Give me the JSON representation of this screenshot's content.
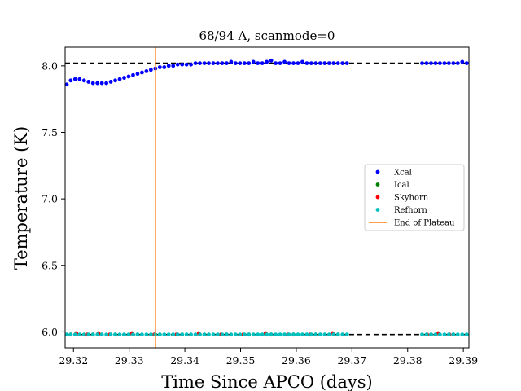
{
  "chart_data": {
    "type": "scatter",
    "title": "68/94 A, scanmode=0",
    "xlabel": "Time Since APCO (days)",
    "ylabel": "Temperature (K)",
    "xlim": [
      29.3185,
      29.391
    ],
    "ylim": [
      5.88,
      8.14
    ],
    "x_ticks": [
      29.32,
      29.33,
      29.34,
      29.35,
      29.36,
      29.37,
      29.38,
      29.39
    ],
    "x_tick_labels": [
      "29.32",
      "29.33",
      "29.34",
      "29.35",
      "29.36",
      "29.37",
      "29.38",
      "29.39"
    ],
    "y_ticks": [
      6.0,
      6.5,
      7.0,
      7.5,
      8.0
    ],
    "y_tick_labels": [
      "6.0",
      "6.5",
      "7.0",
      "7.5",
      "8.0"
    ],
    "grid": false,
    "legend_position": "center-right",
    "plateau_lines": [
      {
        "y": 8.02,
        "style": "dashed",
        "color": "#000000"
      },
      {
        "y": 5.98,
        "style": "dashed",
        "color": "#000000"
      }
    ],
    "end_of_plateau_x": 29.3347,
    "data_gap": [
      29.3695,
      29.3823
    ],
    "series": [
      {
        "name": "Xcal",
        "color": "#0000ff",
        "x": [
          29.3187,
          29.3195,
          29.3203,
          29.3211,
          29.3219,
          29.3227,
          29.3235,
          29.3243,
          29.3251,
          29.3259,
          29.3267,
          29.3275,
          29.3283,
          29.3291,
          29.3299,
          29.3307,
          29.3315,
          29.3323,
          29.3331,
          29.3339,
          29.3347,
          29.3355,
          29.3363,
          29.3371,
          29.3379,
          29.3387,
          29.3395,
          29.3403,
          29.3411,
          29.3419,
          29.3427,
          29.3435,
          29.3443,
          29.3451,
          29.3459,
          29.3467,
          29.3475,
          29.3483,
          29.3491,
          29.3499,
          29.3507,
          29.3515,
          29.3523,
          29.3531,
          29.3539,
          29.3547,
          29.3555,
          29.3563,
          29.3571,
          29.3579,
          29.3587,
          29.3595,
          29.3603,
          29.3611,
          29.3619,
          29.3627,
          29.3635,
          29.3643,
          29.3651,
          29.3659,
          29.3667,
          29.3675,
          29.3683,
          29.3691,
          29.3826,
          29.3834,
          29.3842,
          29.385,
          29.3858,
          29.3866,
          29.3874,
          29.3882,
          29.389,
          29.3898,
          29.3906
        ],
        "y": [
          7.86,
          7.89,
          7.9,
          7.9,
          7.89,
          7.88,
          7.87,
          7.87,
          7.87,
          7.87,
          7.88,
          7.89,
          7.9,
          7.91,
          7.92,
          7.93,
          7.94,
          7.95,
          7.96,
          7.97,
          7.98,
          7.99,
          7.99,
          8.0,
          8.0,
          8.01,
          8.01,
          8.01,
          8.01,
          8.02,
          8.02,
          8.02,
          8.02,
          8.02,
          8.02,
          8.02,
          8.02,
          8.03,
          8.02,
          8.02,
          8.02,
          8.02,
          8.03,
          8.02,
          8.02,
          8.03,
          8.04,
          8.02,
          8.02,
          8.03,
          8.02,
          8.02,
          8.02,
          8.03,
          8.02,
          8.02,
          8.02,
          8.02,
          8.02,
          8.02,
          8.02,
          8.02,
          8.02,
          8.02,
          8.02,
          8.02,
          8.02,
          8.02,
          8.02,
          8.02,
          8.02,
          8.02,
          8.02,
          8.03,
          8.02
        ]
      },
      {
        "name": "Ical",
        "color": "#008000",
        "x": [
          29.3195,
          29.3235,
          29.3275,
          29.3315,
          29.3355,
          29.3395,
          29.3435,
          29.3475,
          29.3515,
          29.3555,
          29.3595,
          29.3635,
          29.3675,
          29.3842,
          29.3882
        ],
        "y": [
          5.98,
          5.98,
          5.98,
          5.98,
          5.98,
          5.98,
          5.98,
          5.98,
          5.98,
          5.98,
          5.98,
          5.98,
          5.98,
          5.98,
          5.98
        ]
      },
      {
        "name": "Skyhorn",
        "color": "#ff0000",
        "x": [
          29.3205,
          29.3225,
          29.3245,
          29.3265,
          29.3305,
          29.3345,
          29.3385,
          29.3425,
          29.3465,
          29.3505,
          29.3545,
          29.3585,
          29.3625,
          29.3665,
          29.3835,
          29.3855,
          29.3875
        ],
        "y": [
          5.99,
          5.98,
          5.99,
          5.98,
          5.99,
          5.98,
          5.98,
          5.99,
          5.98,
          5.98,
          5.99,
          5.98,
          5.98,
          5.99,
          5.98,
          5.99,
          5.98
        ]
      },
      {
        "name": "Refhorn",
        "color": "#00bfbf",
        "x": [
          29.3187,
          29.3195,
          29.3203,
          29.3211,
          29.3219,
          29.3227,
          29.3235,
          29.3243,
          29.3251,
          29.3259,
          29.3267,
          29.3275,
          29.3283,
          29.3291,
          29.3299,
          29.3307,
          29.3315,
          29.3323,
          29.3331,
          29.3339,
          29.3347,
          29.3355,
          29.3363,
          29.3371,
          29.3379,
          29.3387,
          29.3395,
          29.3403,
          29.3411,
          29.3419,
          29.3427,
          29.3435,
          29.3443,
          29.3451,
          29.3459,
          29.3467,
          29.3475,
          29.3483,
          29.3491,
          29.3499,
          29.3507,
          29.3515,
          29.3523,
          29.3531,
          29.3539,
          29.3547,
          29.3555,
          29.3563,
          29.3571,
          29.3579,
          29.3587,
          29.3595,
          29.3603,
          29.3611,
          29.3619,
          29.3627,
          29.3635,
          29.3643,
          29.3651,
          29.3659,
          29.3667,
          29.3675,
          29.3683,
          29.3691,
          29.3826,
          29.3834,
          29.3842,
          29.385,
          29.3858,
          29.3866,
          29.3874,
          29.3882,
          29.389,
          29.3898,
          29.3906
        ],
        "y": [
          5.98,
          5.98,
          5.98,
          5.98,
          5.98,
          5.98,
          5.98,
          5.98,
          5.98,
          5.98,
          5.98,
          5.98,
          5.98,
          5.98,
          5.98,
          5.98,
          5.98,
          5.98,
          5.98,
          5.98,
          5.98,
          5.98,
          5.98,
          5.98,
          5.98,
          5.98,
          5.98,
          5.98,
          5.98,
          5.98,
          5.98,
          5.98,
          5.98,
          5.98,
          5.98,
          5.98,
          5.98,
          5.98,
          5.98,
          5.98,
          5.98,
          5.98,
          5.98,
          5.98,
          5.98,
          5.98,
          5.98,
          5.98,
          5.98,
          5.98,
          5.98,
          5.98,
          5.98,
          5.98,
          5.98,
          5.98,
          5.98,
          5.98,
          5.98,
          5.98,
          5.98,
          5.98,
          5.98,
          5.98,
          5.98,
          5.98,
          5.98,
          5.98,
          5.98,
          5.98,
          5.98,
          5.98,
          5.98,
          5.98,
          5.98
        ]
      }
    ],
    "vertical_line": {
      "name": "End of Plateau",
      "color": "#ff7f0e"
    }
  }
}
